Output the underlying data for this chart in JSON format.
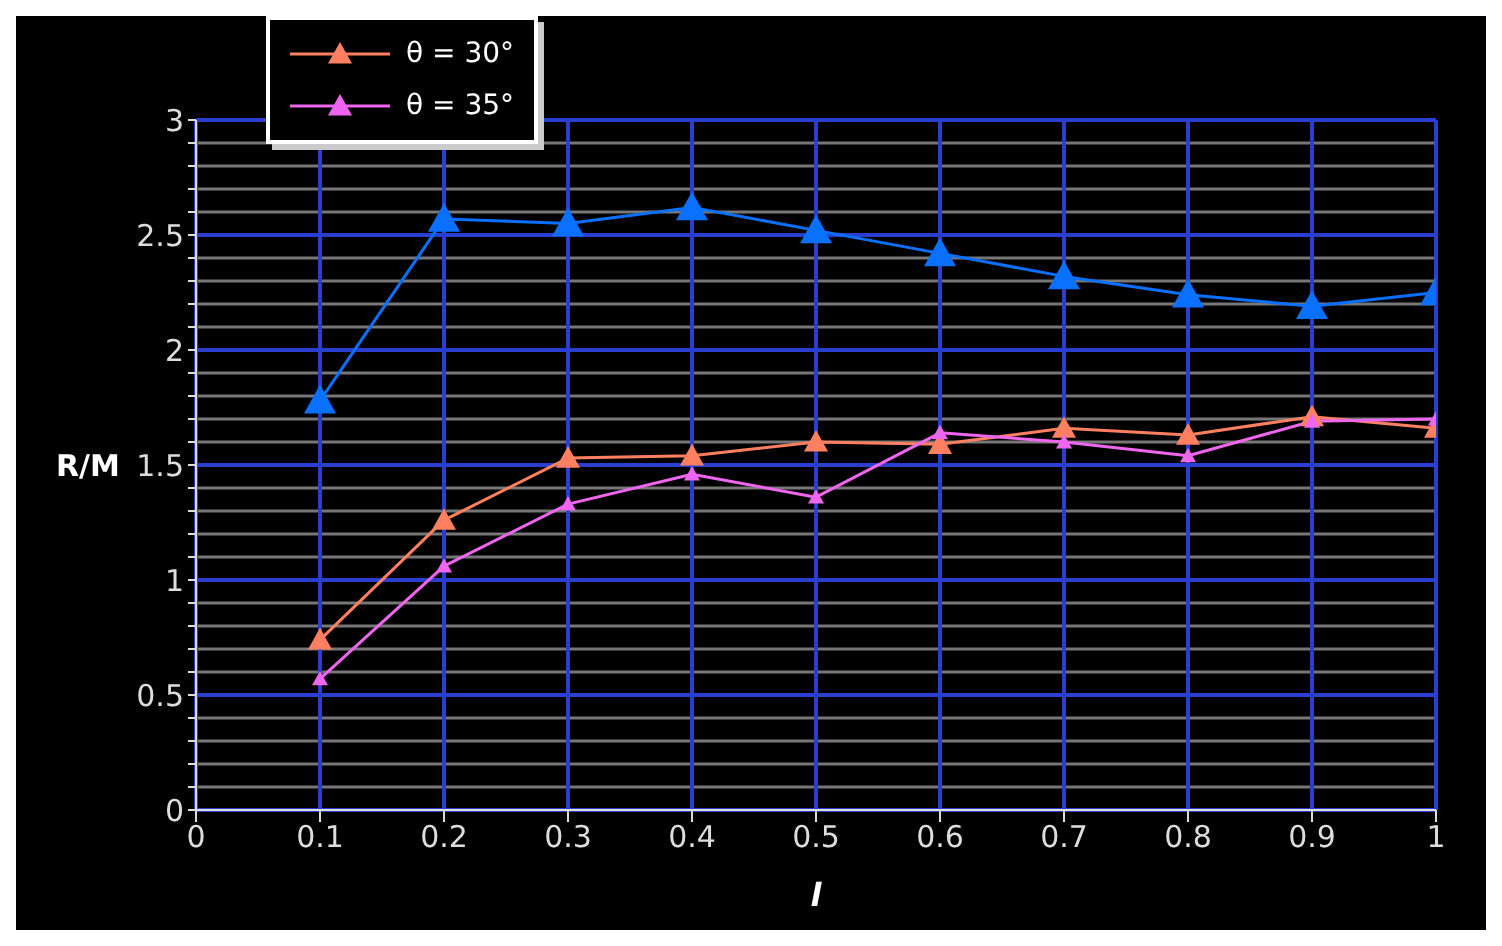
{
  "chart_data": {
    "type": "line",
    "xlabel": "l",
    "ylabel": "R/M",
    "x": [
      0.1,
      0.2,
      0.3,
      0.4,
      0.5,
      0.6,
      0.7,
      0.8,
      0.9,
      1
    ],
    "series": [
      {
        "color": "#0a70ff",
        "values": [
          1.78,
          2.57,
          2.55,
          2.62,
          2.52,
          2.42,
          2.32,
          2.24,
          2.19,
          2.25
        ]
      },
      {
        "name": "θ = 30°",
        "color": "#ff8060",
        "values": [
          0.74,
          1.26,
          1.53,
          1.54,
          1.6,
          1.59,
          1.66,
          1.63,
          1.71,
          1.66
        ]
      },
      {
        "name": "θ = 35°",
        "color": "#ee66ee",
        "values": [
          0.57,
          1.06,
          1.33,
          1.46,
          1.36,
          1.64,
          1.6,
          1.54,
          1.69,
          1.7
        ]
      }
    ],
    "xlim": [
      0,
      1
    ],
    "xticks": [
      0,
      0.1,
      0.2,
      0.3,
      0.4,
      0.5,
      0.6,
      0.7,
      0.8,
      0.9,
      1
    ],
    "ylim": [
      0,
      3
    ],
    "yticks": [
      0,
      {
        "value": 0.1,
        "label": null
      },
      {
        "value": 0.2,
        "label": null
      },
      {
        "value": 0.3,
        "label": null
      },
      {
        "value": 0.4,
        "label": null
      },
      0.5,
      {
        "value": 0.6,
        "label": null
      },
      {
        "value": 0.7,
        "label": null
      },
      {
        "value": 0.8,
        "label": null
      },
      {
        "value": 0.9,
        "label": null
      },
      1,
      {
        "value": 1.1,
        "label": null
      },
      {
        "value": 1.2,
        "label": null
      },
      {
        "value": 1.3,
        "label": null
      },
      {
        "value": 1.4,
        "label": null
      },
      1.5,
      {
        "value": 1.6,
        "label": null
      },
      {
        "value": 1.7,
        "label": null
      },
      {
        "value": 1.8,
        "label": null
      },
      {
        "value": 1.9,
        "label": null
      },
      2,
      {
        "value": 2.1,
        "label": null
      },
      {
        "value": 2.2,
        "label": null
      },
      {
        "value": 2.3,
        "label": null
      },
      {
        "value": 2.4,
        "label": null
      },
      2.5,
      {
        "value": 2.6,
        "label": null
      },
      {
        "value": 2.7,
        "label": null
      },
      {
        "value": 2.8,
        "label": null
      },
      {
        "value": 2.9,
        "label": null
      },
      3
    ],
    "grid": true,
    "legend": "top left",
    "marker": "triangle",
    "line_style": "solid"
  }
}
